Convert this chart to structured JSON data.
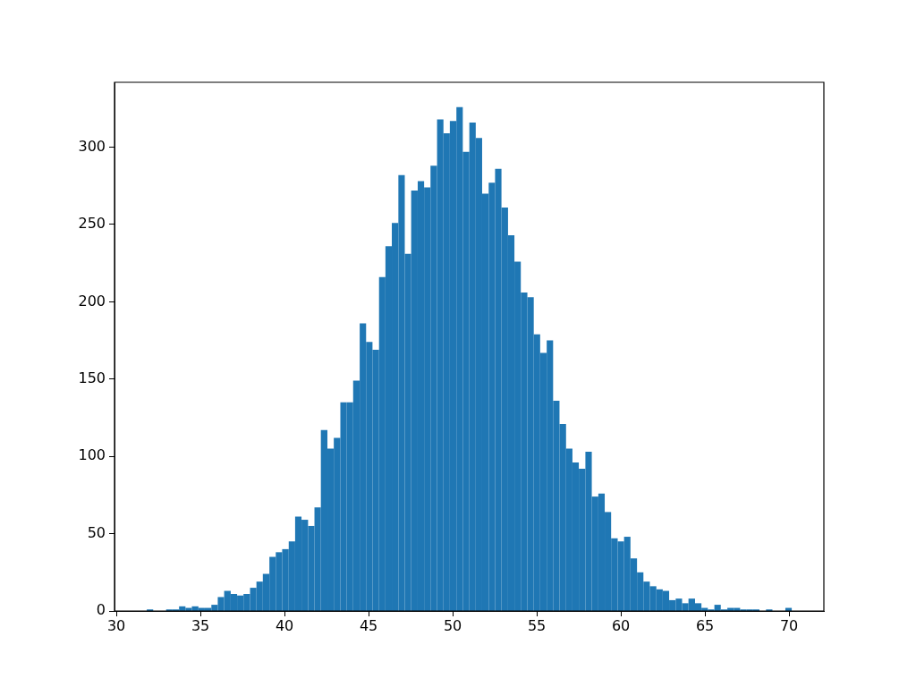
{
  "chart_data": {
    "type": "histogram",
    "bins": [
      31.81,
      32.19,
      32.58,
      32.96,
      33.34,
      33.73,
      34.11,
      34.49,
      34.88,
      35.26,
      35.65,
      36.03,
      36.41,
      36.8,
      37.18,
      37.56,
      37.95,
      38.33,
      38.71,
      39.1,
      39.48,
      39.86,
      40.25,
      40.63,
      41.01,
      41.4,
      41.78,
      42.16,
      42.55,
      42.93,
      43.32,
      43.7,
      44.08,
      44.47,
      44.85,
      45.23,
      45.62,
      46.0,
      46.38,
      46.77,
      47.15,
      47.53,
      47.92,
      48.3,
      48.68,
      49.07,
      49.45,
      49.83,
      50.22,
      50.6,
      50.99,
      51.37,
      51.75,
      52.14,
      52.52,
      52.9,
      53.29,
      53.67,
      54.05,
      54.44,
      54.82,
      55.2,
      55.59,
      55.97,
      56.35,
      56.74,
      57.12,
      57.5,
      57.89,
      58.27,
      58.66,
      59.04,
      59.42,
      59.81,
      60.19,
      60.57,
      60.96,
      61.34,
      61.72,
      62.11,
      62.49,
      62.87,
      63.26,
      63.64,
      64.02,
      64.41,
      64.79,
      65.17,
      65.56,
      65.94,
      66.33,
      66.71,
      67.09,
      67.48,
      67.86,
      68.24,
      68.63,
      69.01,
      69.39,
      69.78,
      70.16
    ],
    "values": [
      1,
      0,
      0,
      1,
      1,
      3,
      2,
      3,
      2,
      2,
      4,
      9,
      13,
      11,
      10,
      11,
      15,
      19,
      24,
      35,
      38,
      40,
      45,
      61,
      59,
      55,
      67,
      117,
      105,
      112,
      135,
      135,
      149,
      186,
      174,
      169,
      216,
      236,
      251,
      282,
      231,
      272,
      278,
      274,
      288,
      318,
      309,
      317,
      326,
      297,
      316,
      306,
      270,
      277,
      286,
      261,
      243,
      226,
      206,
      203,
      179,
      167,
      175,
      136,
      121,
      105,
      96,
      92,
      103,
      74,
      76,
      64,
      47,
      45,
      48,
      34,
      25,
      19,
      16,
      14,
      13,
      7,
      8,
      5,
      8,
      5,
      2,
      1,
      4,
      1,
      2,
      2,
      1,
      1,
      1,
      0,
      1,
      0,
      0,
      2
    ],
    "color": "#1f77b4",
    "xlim": [
      29.89,
      72.07
    ],
    "ylim": [
      0,
      342
    ],
    "xticks": [
      30,
      35,
      40,
      45,
      50,
      55,
      60,
      65,
      70
    ],
    "yticks": [
      0,
      50,
      100,
      150,
      200,
      250,
      300
    ],
    "grid": false
  }
}
